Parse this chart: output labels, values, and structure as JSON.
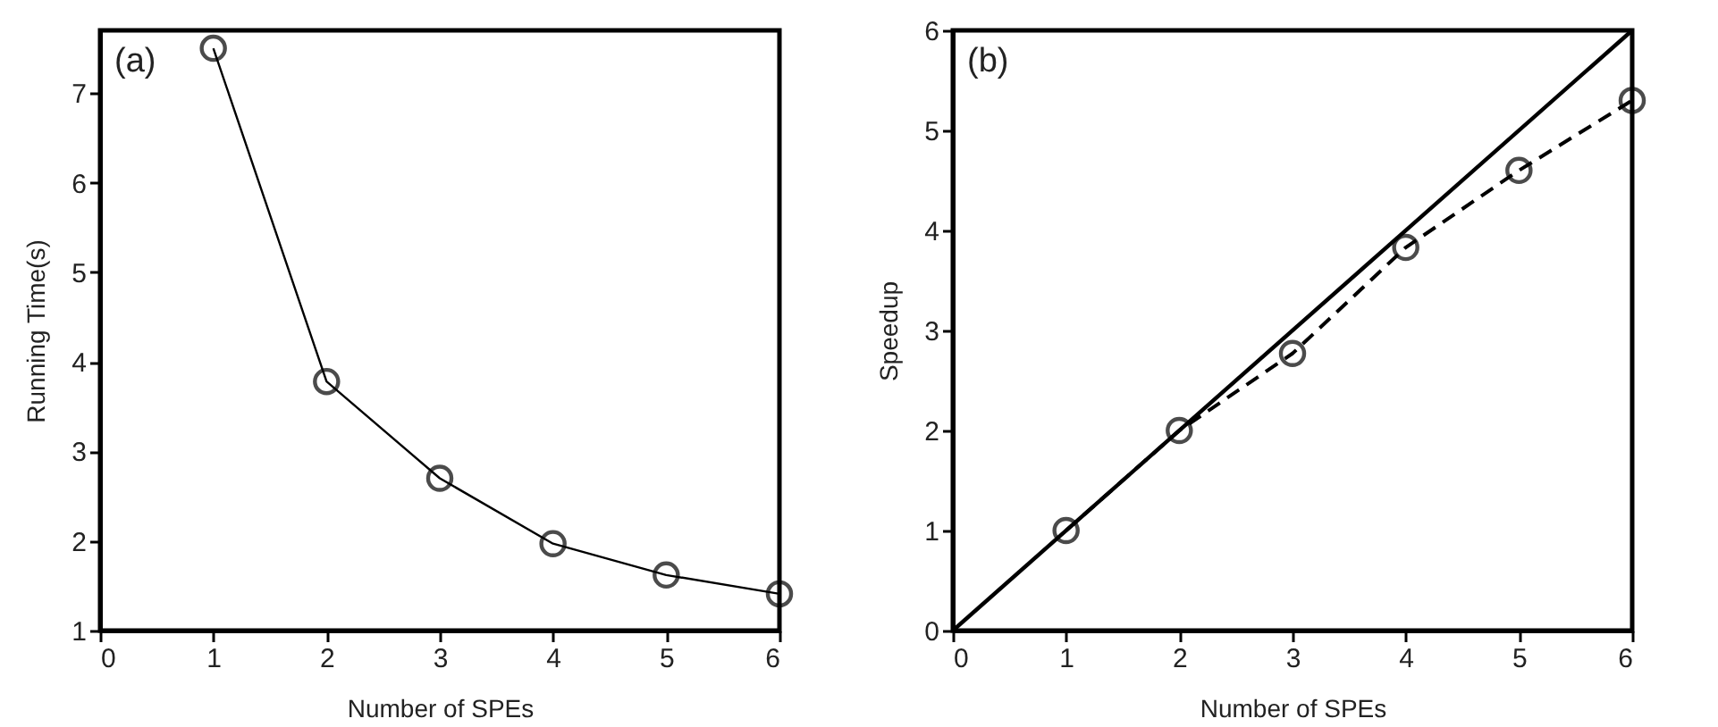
{
  "chart_data": [
    {
      "type": "line",
      "annotations": [
        "(a)"
      ],
      "xlabel": "Number of SPEs",
      "ylabel": "Running Time(s)",
      "x": [
        1,
        2,
        3,
        4,
        5,
        6
      ],
      "series": [
        {
          "color": "#000000",
          "values": [
            7.5,
            3.78,
            2.7,
            1.97,
            1.62,
            1.41
          ]
        }
      ],
      "xlim": [
        0,
        6
      ],
      "xticks": [
        0,
        1,
        2,
        3,
        4,
        5,
        6
      ],
      "ylim": [
        1,
        7.7
      ],
      "yticks": [
        1,
        2,
        3,
        4,
        5,
        6,
        7
      ],
      "grid": false,
      "marker": "circle",
      "line_style": "solid"
    },
    {
      "type": "line",
      "annotations": [
        "(b)"
      ],
      "xlabel": "Number of SPEs",
      "ylabel": "Speedup",
      "series": [
        {
          "color": "#000000",
          "x": [
            0,
            6
          ],
          "values": [
            0,
            6
          ],
          "marker": "none",
          "line_style": "solid"
        },
        {
          "color": "#000000",
          "x": [
            1,
            2,
            3,
            4,
            5,
            6
          ],
          "values": [
            1,
            2,
            2.77,
            3.83,
            4.6,
            5.3
          ],
          "marker": "circle",
          "line_style": "dashed"
        }
      ],
      "xlim": [
        0,
        6
      ],
      "xticks": [
        0,
        1,
        2,
        3,
        4,
        5,
        6
      ],
      "ylim": [
        0,
        6
      ],
      "yticks": [
        0,
        1,
        2,
        3,
        4,
        5,
        6
      ],
      "grid": false
    }
  ]
}
